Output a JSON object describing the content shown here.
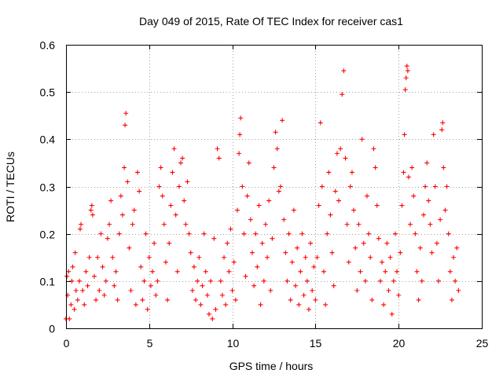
{
  "chart_data": {
    "type": "scatter",
    "title": "Day 049 of 2015, Rate Of TEC Index for receiver cas1",
    "xlabel": "GPS time / hours",
    "ylabel": "ROTI / TECUs",
    "xlim": [
      0,
      25
    ],
    "ylim": [
      0,
      0.6
    ],
    "x_ticks": [
      0,
      5,
      10,
      15,
      20,
      25
    ],
    "x_tick_labels": [
      "0",
      "5",
      "10",
      "15",
      "20",
      "25"
    ],
    "y_ticks": [
      0,
      0.1,
      0.2,
      0.3,
      0.4,
      0.5,
      0.6
    ],
    "y_tick_labels": [
      "0",
      "0.1",
      "0.2",
      "0.3",
      "0.4",
      "0.5",
      "0.6"
    ],
    "grid": true,
    "marker": "+",
    "marker_color": "#ff0000",
    "series": [
      {
        "color": "#ff0000",
        "points": [
          [
            0.0,
            0.02
          ],
          [
            0.05,
            0.11
          ],
          [
            0.1,
            0.07
          ],
          [
            0.15,
            0.12
          ],
          [
            0.2,
            0.02
          ],
          [
            0.3,
            0.05
          ],
          [
            0.35,
            0.1
          ],
          [
            0.4,
            0.13
          ],
          [
            0.5,
            0.04
          ],
          [
            0.55,
            0.16
          ],
          [
            0.6,
            0.08
          ],
          [
            0.7,
            0.06
          ],
          [
            0.8,
            0.1
          ],
          [
            0.85,
            0.21
          ],
          [
            0.9,
            0.22
          ],
          [
            1.0,
            0.08
          ],
          [
            1.1,
            0.05
          ],
          [
            1.2,
            0.12
          ],
          [
            1.3,
            0.09
          ],
          [
            1.4,
            0.15
          ],
          [
            1.5,
            0.25
          ],
          [
            1.55,
            0.26
          ],
          [
            1.6,
            0.24
          ],
          [
            1.7,
            0.11
          ],
          [
            1.8,
            0.06
          ],
          [
            1.9,
            0.15
          ],
          [
            2.0,
            0.08
          ],
          [
            2.1,
            0.2
          ],
          [
            2.2,
            0.13
          ],
          [
            2.3,
            0.07
          ],
          [
            2.4,
            0.1
          ],
          [
            2.5,
            0.19
          ],
          [
            2.6,
            0.22
          ],
          [
            2.7,
            0.27
          ],
          [
            2.8,
            0.15
          ],
          [
            2.9,
            0.09
          ],
          [
            3.0,
            0.12
          ],
          [
            3.1,
            0.06
          ],
          [
            3.2,
            0.2
          ],
          [
            3.3,
            0.28
          ],
          [
            3.4,
            0.24
          ],
          [
            3.5,
            0.34
          ],
          [
            3.55,
            0.43
          ],
          [
            3.6,
            0.455
          ],
          [
            3.7,
            0.31
          ],
          [
            3.8,
            0.17
          ],
          [
            3.9,
            0.08
          ],
          [
            4.0,
            0.22
          ],
          [
            4.1,
            0.25
          ],
          [
            4.2,
            0.05
          ],
          [
            4.3,
            0.33
          ],
          [
            4.4,
            0.29
          ],
          [
            4.5,
            0.13
          ],
          [
            4.6,
            0.06
          ],
          [
            4.7,
            0.1
          ],
          [
            4.8,
            0.2
          ],
          [
            4.9,
            0.04
          ],
          [
            5.0,
            0.15
          ],
          [
            5.1,
            0.09
          ],
          [
            5.2,
            0.12
          ],
          [
            5.3,
            0.18
          ],
          [
            5.4,
            0.07
          ],
          [
            5.5,
            0.1
          ],
          [
            5.6,
            0.3
          ],
          [
            5.7,
            0.34
          ],
          [
            5.8,
            0.28
          ],
          [
            5.9,
            0.22
          ],
          [
            6.0,
            0.14
          ],
          [
            6.1,
            0.06
          ],
          [
            6.2,
            0.18
          ],
          [
            6.3,
            0.26
          ],
          [
            6.4,
            0.33
          ],
          [
            6.5,
            0.38
          ],
          [
            6.6,
            0.24
          ],
          [
            6.7,
            0.12
          ],
          [
            6.8,
            0.3
          ],
          [
            6.9,
            0.35
          ],
          [
            7.0,
            0.36
          ],
          [
            7.1,
            0.27
          ],
          [
            7.2,
            0.22
          ],
          [
            7.3,
            0.31
          ],
          [
            7.4,
            0.2
          ],
          [
            7.5,
            0.16
          ],
          [
            7.6,
            0.08
          ],
          [
            7.7,
            0.13
          ],
          [
            7.8,
            0.06
          ],
          [
            7.9,
            0.1
          ],
          [
            8.0,
            0.15
          ],
          [
            8.1,
            0.05
          ],
          [
            8.2,
            0.09
          ],
          [
            8.3,
            0.2
          ],
          [
            8.4,
            0.12
          ],
          [
            8.5,
            0.07
          ],
          [
            8.6,
            0.03
          ],
          [
            8.7,
            0.1
          ],
          [
            8.8,
            0.02
          ],
          [
            8.9,
            0.19
          ],
          [
            9.0,
            0.04
          ],
          [
            9.1,
            0.38
          ],
          [
            9.2,
            0.36
          ],
          [
            9.3,
            0.1
          ],
          [
            9.4,
            0.07
          ],
          [
            9.5,
            0.15
          ],
          [
            9.6,
            0.05
          ],
          [
            9.7,
            0.18
          ],
          [
            9.8,
            0.12
          ],
          [
            9.9,
            0.21
          ],
          [
            10.0,
            0.08
          ],
          [
            10.1,
            0.14
          ],
          [
            10.2,
            0.06
          ],
          [
            10.3,
            0.25
          ],
          [
            10.4,
            0.37
          ],
          [
            10.45,
            0.41
          ],
          [
            10.5,
            0.445
          ],
          [
            10.6,
            0.3
          ],
          [
            10.7,
            0.2
          ],
          [
            10.8,
            0.11
          ],
          [
            10.9,
            0.28
          ],
          [
            11.0,
            0.35
          ],
          [
            11.1,
            0.23
          ],
          [
            11.2,
            0.16
          ],
          [
            11.3,
            0.09
          ],
          [
            11.4,
            0.2
          ],
          [
            11.5,
            0.13
          ],
          [
            11.6,
            0.26
          ],
          [
            11.7,
            0.05
          ],
          [
            11.8,
            0.18
          ],
          [
            11.9,
            0.1
          ],
          [
            12.0,
            0.22
          ],
          [
            12.1,
            0.15
          ],
          [
            12.2,
            0.27
          ],
          [
            12.3,
            0.08
          ],
          [
            12.4,
            0.19
          ],
          [
            12.5,
            0.34
          ],
          [
            12.6,
            0.415
          ],
          [
            12.7,
            0.38
          ],
          [
            12.8,
            0.29
          ],
          [
            12.9,
            0.3
          ],
          [
            13.0,
            0.44
          ],
          [
            13.1,
            0.23
          ],
          [
            13.2,
            0.16
          ],
          [
            13.3,
            0.1
          ],
          [
            13.4,
            0.2
          ],
          [
            13.5,
            0.06
          ],
          [
            13.6,
            0.14
          ],
          [
            13.7,
            0.25
          ],
          [
            13.8,
            0.09
          ],
          [
            13.9,
            0.17
          ],
          [
            14.0,
            0.05
          ],
          [
            14.1,
            0.12
          ],
          [
            14.2,
            0.2
          ],
          [
            14.3,
            0.07
          ],
          [
            14.4,
            0.15
          ],
          [
            14.5,
            0.1
          ],
          [
            14.6,
            0.04
          ],
          [
            14.7,
            0.18
          ],
          [
            14.8,
            0.08
          ],
          [
            14.9,
            0.13
          ],
          [
            15.0,
            0.06
          ],
          [
            15.1,
            0.15
          ],
          [
            15.2,
            0.26
          ],
          [
            15.3,
            0.435
          ],
          [
            15.4,
            0.3
          ],
          [
            15.5,
            0.12
          ],
          [
            15.6,
            0.05
          ],
          [
            15.7,
            0.2
          ],
          [
            15.8,
            0.33
          ],
          [
            15.9,
            0.24
          ],
          [
            16.0,
            0.16
          ],
          [
            16.1,
            0.09
          ],
          [
            16.2,
            0.29
          ],
          [
            16.3,
            0.37
          ],
          [
            16.4,
            0.27
          ],
          [
            16.5,
            0.38
          ],
          [
            16.6,
            0.495
          ],
          [
            16.7,
            0.545
          ],
          [
            16.8,
            0.36
          ],
          [
            16.9,
            0.22
          ],
          [
            17.0,
            0.14
          ],
          [
            17.1,
            0.3
          ],
          [
            17.2,
            0.33
          ],
          [
            17.3,
            0.25
          ],
          [
            17.4,
            0.17
          ],
          [
            17.5,
            0.08
          ],
          [
            17.6,
            0.22
          ],
          [
            17.7,
            0.12
          ],
          [
            17.8,
            0.4
          ],
          [
            17.9,
            0.18
          ],
          [
            18.0,
            0.1
          ],
          [
            18.1,
            0.28
          ],
          [
            18.2,
            0.2
          ],
          [
            18.3,
            0.15
          ],
          [
            18.4,
            0.06
          ],
          [
            18.5,
            0.38
          ],
          [
            18.6,
            0.34
          ],
          [
            18.7,
            0.26
          ],
          [
            18.8,
            0.19
          ],
          [
            18.9,
            0.1
          ],
          [
            19.0,
            0.14
          ],
          [
            19.1,
            0.05
          ],
          [
            19.2,
            0.12
          ],
          [
            19.3,
            0.18
          ],
          [
            19.4,
            0.08
          ],
          [
            19.5,
            0.15
          ],
          [
            19.6,
            0.03
          ],
          [
            19.7,
            0.1
          ],
          [
            19.8,
            0.2
          ],
          [
            19.9,
            0.12
          ],
          [
            20.0,
            0.07
          ],
          [
            20.1,
            0.16
          ],
          [
            20.2,
            0.26
          ],
          [
            20.3,
            0.33
          ],
          [
            20.35,
            0.41
          ],
          [
            20.4,
            0.505
          ],
          [
            20.45,
            0.53
          ],
          [
            20.5,
            0.555
          ],
          [
            20.55,
            0.545
          ],
          [
            20.6,
            0.32
          ],
          [
            20.7,
            0.22
          ],
          [
            20.8,
            0.34
          ],
          [
            20.9,
            0.28
          ],
          [
            21.0,
            0.2
          ],
          [
            21.1,
            0.12
          ],
          [
            21.2,
            0.06
          ],
          [
            21.3,
            0.17
          ],
          [
            21.4,
            0.1
          ],
          [
            21.5,
            0.24
          ],
          [
            21.6,
            0.3
          ],
          [
            21.7,
            0.35
          ],
          [
            21.8,
            0.27
          ],
          [
            21.9,
            0.22
          ],
          [
            22.0,
            0.16
          ],
          [
            22.1,
            0.41
          ],
          [
            22.2,
            0.3
          ],
          [
            22.3,
            0.18
          ],
          [
            22.4,
            0.1
          ],
          [
            22.5,
            0.23
          ],
          [
            22.6,
            0.42
          ],
          [
            22.65,
            0.435
          ],
          [
            22.7,
            0.34
          ],
          [
            22.8,
            0.25
          ],
          [
            22.9,
            0.3
          ],
          [
            23.0,
            0.2
          ],
          [
            23.1,
            0.12
          ],
          [
            23.2,
            0.06
          ],
          [
            23.3,
            0.15
          ],
          [
            23.4,
            0.1
          ],
          [
            23.5,
            0.17
          ],
          [
            23.6,
            0.08
          ]
        ]
      }
    ]
  }
}
